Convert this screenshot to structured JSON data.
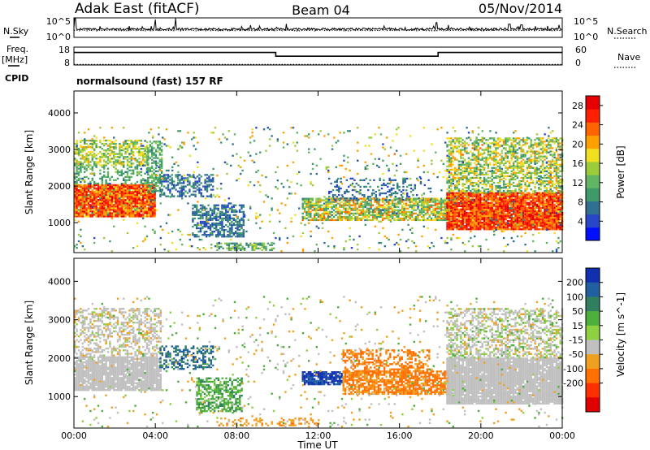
{
  "header": {
    "station": "Adak East (fitACF)",
    "beam": "Beam 04",
    "date": "05/Nov/2014"
  },
  "noise_panel": {
    "left_label": "N.Sky",
    "right_label": "N.Search",
    "left_ticks": [
      "10^5",
      "10^0"
    ],
    "right_ticks": [
      "10^5",
      "10^0"
    ]
  },
  "freq_panel": {
    "left_label_1": "Freq.",
    "left_label_2": "[MHz]",
    "right_label": "Nave",
    "left_ticks": [
      "18",
      "8"
    ],
    "right_ticks": [
      "60",
      "0"
    ],
    "cpid_label": "CPID",
    "cpid_text": "normalsound (fast) 157 RF"
  },
  "chart_data": [
    {
      "type": "line",
      "name": "noise",
      "xlim": [
        0,
        24
      ],
      "ylim_log10": [
        0,
        5
      ],
      "baseline_log10": 2.1,
      "spikes": [
        {
          "x": 0.05,
          "y": 4.8
        },
        {
          "x": 4.0,
          "y": 4.6
        },
        {
          "x": 5.0,
          "y": 4.9
        },
        {
          "x": 17.8,
          "y": 3.8
        },
        {
          "x": 21.4,
          "y": 3.4
        },
        {
          "x": 22.0,
          "y": 3.2
        }
      ]
    },
    {
      "type": "line",
      "name": "frequency-nave",
      "xlim": [
        0,
        24
      ],
      "freq_ylim": [
        8,
        18
      ],
      "nave_ylim": [
        0,
        60
      ],
      "freq_steps": [
        [
          0,
          15.0
        ],
        [
          9.92,
          15.0
        ],
        [
          9.92,
          12.9
        ],
        [
          17.9,
          12.9
        ],
        [
          17.9,
          15.0
        ],
        [
          24,
          15.0
        ]
      ],
      "nave_level": 2
    },
    {
      "type": "heatmap",
      "name": "power",
      "xlabel": "",
      "ylabel": "Slant Range [km]",
      "xlim": [
        0,
        24
      ],
      "ylim": [
        180,
        4600
      ],
      "yticks": [
        1000,
        2000,
        3000,
        4000
      ],
      "colorbar": {
        "label": "Power [dB]",
        "range": [
          0,
          30
        ],
        "ticks": [
          4,
          8,
          12,
          16,
          20,
          24,
          28
        ],
        "colors": [
          "#0010ff",
          "#2846c8",
          "#2f6f8f",
          "#3f9a6a",
          "#62b562",
          "#9ccc3a",
          "#f0e020",
          "#ffa000",
          "#ff6400",
          "#ff2000",
          "#e60000"
        ]
      },
      "regions": [
        {
          "t0": 0.0,
          "t1": 4.0,
          "r0": 1150,
          "r1": 2050,
          "v0": 18,
          "v1": 30,
          "d": 0.95
        },
        {
          "t0": 0.0,
          "t1": 3.6,
          "r0": 2050,
          "r1": 2550,
          "v0": 8,
          "v1": 14,
          "d": 0.35
        },
        {
          "t0": 0.0,
          "t1": 3.6,
          "r0": 2550,
          "r1": 3250,
          "v0": 10,
          "v1": 20,
          "d": 0.55
        },
        {
          "t0": 3.6,
          "t1": 4.3,
          "r0": 1800,
          "r1": 3200,
          "v0": 8,
          "v1": 14,
          "d": 0.6
        },
        {
          "t0": 4.2,
          "t1": 6.8,
          "r0": 1700,
          "r1": 2300,
          "v0": 4,
          "v1": 9,
          "d": 0.5
        },
        {
          "t0": 5.8,
          "t1": 8.3,
          "r0": 600,
          "r1": 1500,
          "v0": 4,
          "v1": 10,
          "d": 0.6
        },
        {
          "t0": 7.0,
          "t1": 9.8,
          "r0": 230,
          "r1": 420,
          "v0": 6,
          "v1": 16,
          "d": 0.6
        },
        {
          "t0": 11.2,
          "t1": 18.4,
          "r0": 1050,
          "r1": 1650,
          "v0": 8,
          "v1": 24,
          "d": 0.75
        },
        {
          "t0": 12.5,
          "t1": 17.5,
          "r0": 1600,
          "r1": 2200,
          "v0": 4,
          "v1": 9,
          "d": 0.25
        },
        {
          "t0": 18.3,
          "t1": 24.0,
          "r0": 800,
          "r1": 1800,
          "v0": 20,
          "v1": 30,
          "d": 0.95
        },
        {
          "t0": 18.3,
          "t1": 24.0,
          "r0": 1800,
          "r1": 3300,
          "v0": 8,
          "v1": 22,
          "d": 0.55
        },
        {
          "t0": 0.0,
          "t1": 24.0,
          "r0": 200,
          "r1": 3600,
          "v0": 4,
          "v1": 22,
          "d": 0.05
        }
      ]
    },
    {
      "type": "heatmap",
      "name": "velocity",
      "xlabel": "Time UT",
      "ylabel": "Slant Range [km]",
      "xlim": [
        0,
        24
      ],
      "ylim": [
        180,
        4600
      ],
      "yticks": [
        1000,
        2000,
        3000,
        4000
      ],
      "xtick_labels": [
        "00:00",
        "04:00",
        "08:00",
        "12:00",
        "16:00",
        "20:00",
        "00:00"
      ],
      "colorbar": {
        "label": "Velocity [m s^-1]",
        "tick_labels": [
          "200",
          "100",
          "50",
          "15",
          "-15",
          "-50",
          "-100",
          "-200"
        ],
        "colors": [
          "#1030b0",
          "#2060a0",
          "#2f7f5f",
          "#4caf3c",
          "#8fd040",
          "#c0c0c0",
          "#f0a020",
          "#ff7000",
          "#ff3000",
          "#e00000"
        ]
      },
      "regions": [
        {
          "t0": 0.0,
          "t1": 4.3,
          "r0": 1150,
          "r1": 2050,
          "v0": -10,
          "v1": 10,
          "d": 0.9
        },
        {
          "t0": 0.0,
          "t1": 4.3,
          "r0": 2050,
          "r1": 3300,
          "v0": -20,
          "v1": 20,
          "d": 0.45
        },
        {
          "t0": 4.2,
          "t1": 6.8,
          "r0": 1700,
          "r1": 2300,
          "v0": 60,
          "v1": 160,
          "d": 0.45
        },
        {
          "t0": 6.0,
          "t1": 8.3,
          "r0": 600,
          "r1": 1500,
          "v0": 20,
          "v1": 60,
          "d": 0.6
        },
        {
          "t0": 7.0,
          "t1": 12.0,
          "r0": 230,
          "r1": 420,
          "v0": -60,
          "v1": -15,
          "d": 0.35
        },
        {
          "t0": 11.2,
          "t1": 13.2,
          "r0": 1300,
          "r1": 1650,
          "v0": 120,
          "v1": 220,
          "d": 0.8
        },
        {
          "t0": 13.2,
          "t1": 18.4,
          "r0": 1050,
          "r1": 1650,
          "v0": -90,
          "v1": -30,
          "d": 0.75
        },
        {
          "t0": 13.2,
          "t1": 17.5,
          "r0": 1600,
          "r1": 2200,
          "v0": -80,
          "v1": -40,
          "d": 0.45
        },
        {
          "t0": 18.3,
          "t1": 24.0,
          "r0": 800,
          "r1": 2000,
          "v0": -12,
          "v1": 12,
          "d": 0.95
        },
        {
          "t0": 18.3,
          "t1": 24.0,
          "r0": 2000,
          "r1": 3300,
          "v0": -20,
          "v1": 30,
          "d": 0.5
        },
        {
          "t0": 0.0,
          "t1": 24.0,
          "r0": 200,
          "r1": 3600,
          "v0": -40,
          "v1": 40,
          "d": 0.04
        }
      ]
    }
  ]
}
